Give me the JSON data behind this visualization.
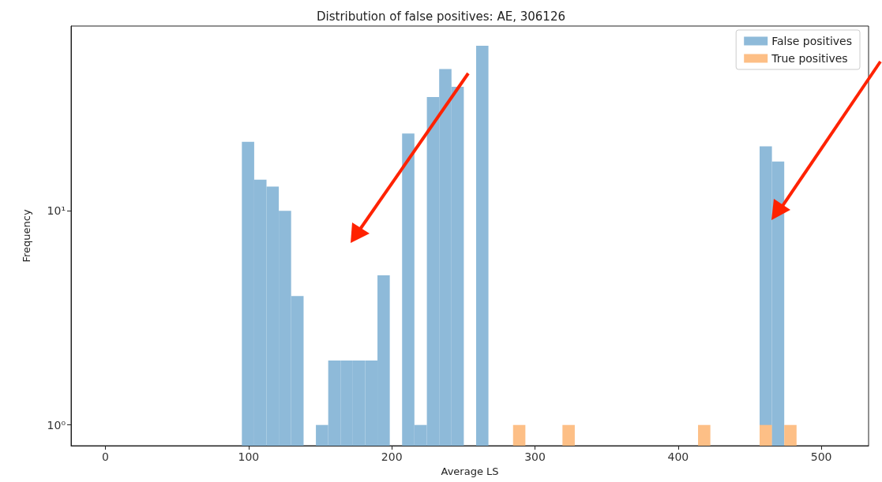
{
  "chart_data": {
    "type": "histogram",
    "title": "Distribution of false positives: AE, 306126",
    "xlabel": "Average LS",
    "ylabel": "Frequency",
    "bins": [
      95.3,
      103.9,
      112.5,
      121.1,
      129.7,
      138.4,
      147.0,
      155.6,
      164.2,
      172.8,
      181.4,
      190.0,
      198.6,
      207.2,
      215.8,
      224.5,
      233.1,
      241.7,
      250.3,
      258.9,
      267.5,
      276.1,
      284.7,
      293.3,
      301.9,
      310.6,
      319.2,
      327.8,
      336.4,
      345.0,
      353.6,
      362.2,
      370.8,
      379.4,
      388.0,
      396.7,
      405.3,
      413.9,
      422.5,
      431.1,
      439.7,
      448.3,
      456.9,
      465.5,
      474.1,
      482.7
    ],
    "series": [
      {
        "name": "False positives",
        "color": "#8ebad9",
        "values": [
          21,
          14,
          13,
          10,
          4,
          null,
          1,
          2,
          2,
          2,
          2,
          5,
          null,
          23,
          1,
          34,
          46,
          38,
          null,
          59,
          null,
          null,
          null,
          null,
          null,
          null,
          null,
          null,
          null,
          null,
          null,
          null,
          null,
          null,
          null,
          null,
          null,
          null,
          null,
          null,
          null,
          null,
          20,
          17,
          null
        ]
      },
      {
        "name": "True positives",
        "color": "#fdbf86",
        "values": [
          null,
          null,
          null,
          null,
          null,
          null,
          null,
          null,
          null,
          null,
          null,
          null,
          null,
          null,
          null,
          null,
          null,
          null,
          null,
          null,
          null,
          null,
          1,
          null,
          null,
          null,
          1,
          null,
          null,
          null,
          null,
          null,
          null,
          null,
          null,
          null,
          null,
          1,
          null,
          null,
          null,
          null,
          1,
          null,
          1
        ]
      }
    ],
    "xlim": [
      -24,
      533
    ],
    "xticks": [
      0,
      100,
      200,
      300,
      400,
      500
    ],
    "ylim": [
      0.8,
      73
    ],
    "yticks": [
      {
        "value": 1,
        "label": "10⁰"
      },
      {
        "value": 10,
        "label": "10¹"
      }
    ],
    "log": "y",
    "legend": "top right"
  }
}
